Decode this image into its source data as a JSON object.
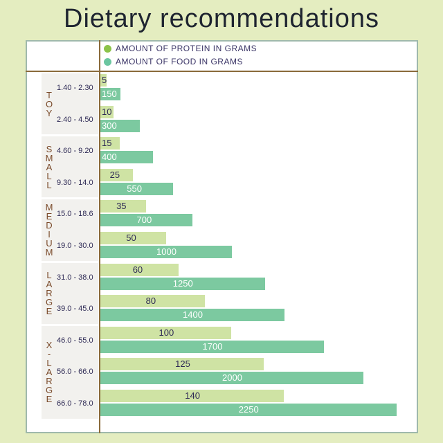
{
  "title": "Dietary recommendations",
  "legend": {
    "protein_label": "AMOUNT OF PROTEIN IN GRAMS",
    "food_label": "AMOUNT OF FOOD IN GRAMS",
    "protein_color": "#8cc34a",
    "food_color": "#6cc6a0"
  },
  "chart_data": {
    "type": "bar",
    "orientation": "horizontal",
    "title": "Dietary recommendations",
    "groups": [
      {
        "letters": [
          "T",
          "O",
          "Y"
        ],
        "ranges": [
          "1.40 - 2.30",
          "2.40 - 4.50"
        ]
      },
      {
        "letters": [
          "S",
          "M",
          "A",
          "L",
          "L"
        ],
        "ranges": [
          "4.60 - 9.20",
          "9.30 - 14.0"
        ]
      },
      {
        "letters": [
          "M",
          "E",
          "D",
          "I",
          "U",
          "M"
        ],
        "ranges": [
          "15.0 - 18.6",
          "19.0 - 30.0"
        ]
      },
      {
        "letters": [
          "L",
          "A",
          "R",
          "G",
          "E"
        ],
        "ranges": [
          "31.0 - 38.0",
          "39.0 - 45.0"
        ]
      },
      {
        "letters": [
          "X",
          "-",
          "L",
          "A",
          "R",
          "G",
          "E"
        ],
        "ranges": [
          "46.0 - 55.0",
          "56.0 - 66.0",
          "66.0 - 78.0"
        ]
      }
    ],
    "categories": [
      "1.40 - 2.30",
      "2.40 - 4.50",
      "4.60 - 9.20",
      "9.30 - 14.0",
      "15.0 - 18.6",
      "19.0 - 30.0",
      "31.0 - 38.0",
      "39.0 - 45.0",
      "46.0 - 55.0",
      "56.0 - 66.0",
      "66.0 - 78.0"
    ],
    "series": [
      {
        "name": "AMOUNT OF PROTEIN IN GRAMS",
        "values": [
          5,
          10,
          15,
          25,
          35,
          50,
          60,
          80,
          100,
          125,
          140
        ]
      },
      {
        "name": "AMOUNT OF FOOD IN GRAMS",
        "values": [
          150,
          300,
          400,
          550,
          700,
          1000,
          1250,
          1400,
          1700,
          2000,
          2250
        ]
      }
    ],
    "legend": "top-left"
  }
}
